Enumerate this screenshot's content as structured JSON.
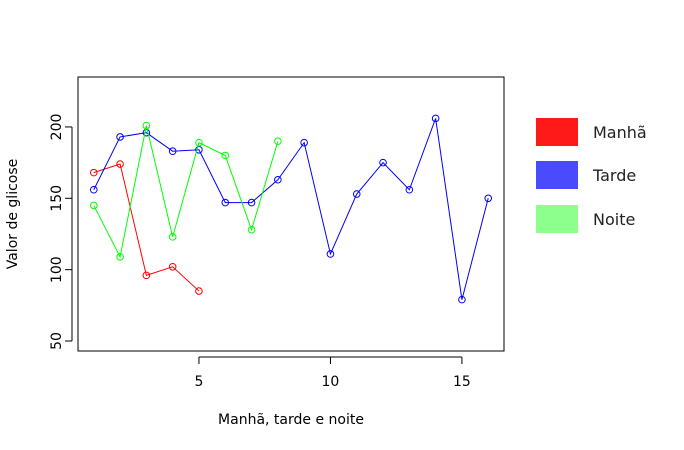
{
  "chart_data": {
    "type": "line",
    "xlabel": "Manhã, tarde e noite",
    "ylabel": "Valor de glicose",
    "xlim": [
      0.4,
      16.6
    ],
    "ylim": [
      43,
      235
    ],
    "xticks": [
      5,
      10,
      15
    ],
    "yticks": [
      50,
      100,
      150,
      200
    ],
    "grid": false,
    "legend_position": "right",
    "series": [
      {
        "name": "Manhã",
        "color": "#ff0000",
        "legend_color": "#ff1a1a",
        "x": [
          1,
          2,
          3,
          4,
          5
        ],
        "values": [
          168,
          174,
          96,
          102,
          85
        ]
      },
      {
        "name": "Tarde",
        "color": "#0000ff",
        "legend_color": "#4a4aff",
        "x": [
          1,
          2,
          3,
          4,
          5,
          6,
          7,
          8,
          9,
          10,
          11,
          12,
          13,
          14,
          15,
          16
        ],
        "values": [
          156,
          193,
          196,
          183,
          184,
          147,
          147,
          163,
          189,
          111,
          153,
          175,
          156,
          206,
          79,
          150
        ]
      },
      {
        "name": "Noite",
        "color": "#00ff00",
        "legend_color": "#8cff8c",
        "x": [
          1,
          2,
          3,
          4,
          5,
          6,
          7,
          8
        ],
        "values": [
          145,
          109,
          201,
          123,
          189,
          180,
          128,
          190
        ]
      }
    ]
  }
}
